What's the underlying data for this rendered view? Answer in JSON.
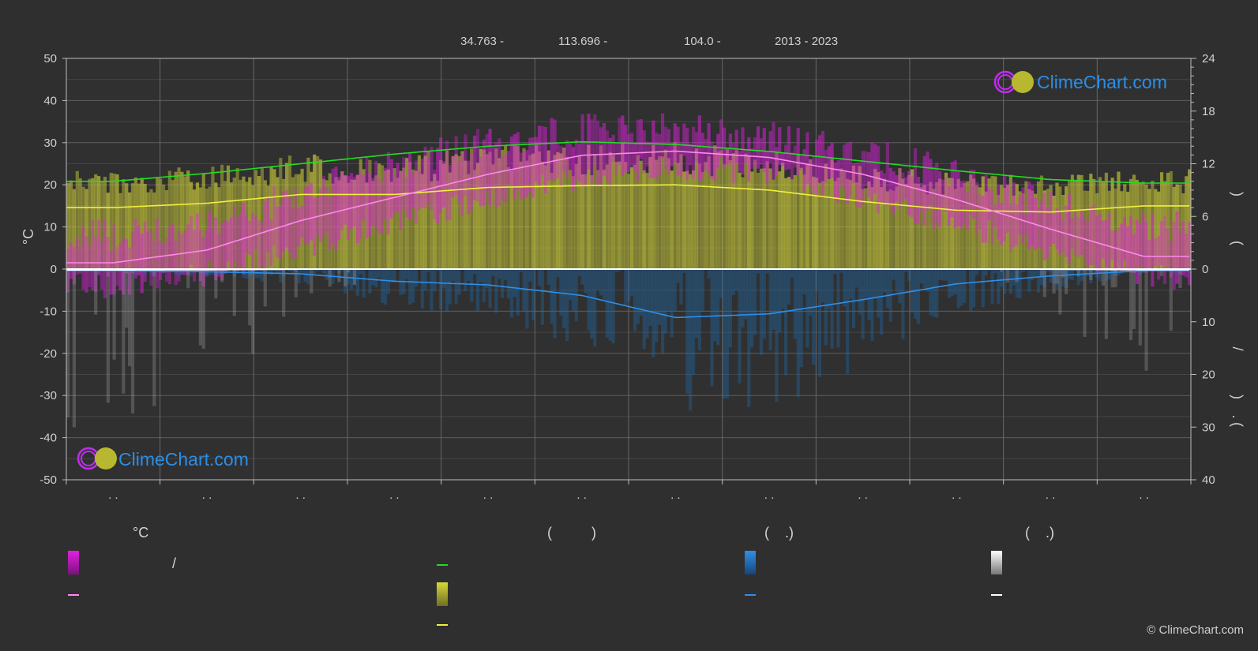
{
  "header": {
    "lat": "34.763 -",
    "lon": "113.696 -",
    "elevation": "104.0 -",
    "period": "2013 - 2023"
  },
  "logo": {
    "text": "ClimeChart.com"
  },
  "copyright": "© ClimeChart.com",
  "legend": {
    "col1_title": "°C",
    "col1_slash": "/",
    "col2_paren": "(          )",
    "col3_paren": "(    .)",
    "col4_paren": "(    .)"
  },
  "colors": {
    "background": "#2f2f2f",
    "grid": "#5a5a5a",
    "temp_range": "#e020e0",
    "temp_mean": "#ff88ee",
    "daylight": "#22dd22",
    "sunshine_band": "#c8c83a",
    "sunshine_line": "#f0f040",
    "rain_bars": "#1e6fb8",
    "rain_line": "#2f8fe8",
    "snow_bars": "#aaaaaa",
    "snow_line": "#ffffff",
    "logo_text": "#2b8ee6"
  },
  "chart_data": {
    "type": "area",
    "left_axis": {
      "label": "°C",
      "ylim": [
        -50,
        50
      ],
      "ticks": [
        50,
        40,
        30,
        20,
        10,
        0,
        -10,
        -20,
        -30,
        -40,
        -50
      ]
    },
    "right_axis_top": {
      "ylim": [
        0,
        24
      ],
      "ticks": [
        24,
        18,
        12,
        6,
        0
      ]
    },
    "right_axis_bottom": {
      "ylim": [
        0,
        40
      ],
      "ticks": [
        0,
        10,
        20,
        30,
        40
      ]
    },
    "x_tick_labels": [
      ". .",
      ". .",
      ". .",
      ". .",
      ". .",
      ". .",
      ". .",
      ". .",
      ". .",
      ". .",
      ". .",
      ". ."
    ],
    "months": 12,
    "series": [
      {
        "key": "temp_mean",
        "values": [
          1.5,
          4.5,
          11.5,
          17,
          22.5,
          27,
          28,
          26.5,
          22.5,
          16.5,
          9.5,
          3.0
        ]
      },
      {
        "key": "temp_band_max",
        "values": [
          8,
          11,
          18,
          25,
          30,
          33,
          33,
          31,
          28,
          22,
          15,
          10
        ]
      },
      {
        "key": "temp_band_min",
        "values": [
          -4,
          -1,
          5,
          11,
          17,
          22,
          24,
          23,
          17,
          11,
          4,
          -2
        ]
      },
      {
        "key": "daylight_hours",
        "values": [
          10.0,
          10.9,
          12.0,
          13.1,
          14.0,
          14.5,
          14.2,
          13.4,
          12.3,
          11.2,
          10.2,
          9.8
        ]
      },
      {
        "key": "sunshine_hours",
        "values": [
          7.0,
          7.5,
          8.5,
          8.5,
          9.3,
          9.5,
          9.6,
          9.0,
          7.7,
          6.7,
          6.5,
          7.2
        ]
      },
      {
        "key": "rain_mm_per_day",
        "values": [
          0.3,
          0.5,
          0.9,
          2.3,
          3.0,
          5.0,
          9.2,
          8.5,
          5.8,
          2.8,
          1.3,
          0.3
        ]
      },
      {
        "key": "snow_mm_per_day",
        "values": [
          0.2,
          0.15,
          0.05,
          0,
          0,
          0,
          0,
          0,
          0,
          0,
          0.05,
          0.15
        ]
      }
    ]
  }
}
